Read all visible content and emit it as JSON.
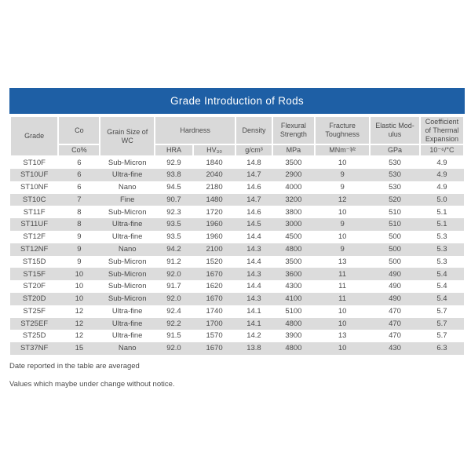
{
  "title": "Grade Introduction of Rods",
  "colors": {
    "title_bar": "#1E5FA5",
    "header_bg": "#D9D9D9",
    "stripe_bg": "#DCDCDC",
    "text": "#4A4A4A",
    "title_text": "#FFFFFF"
  },
  "table": {
    "header": {
      "grade": "Grade",
      "co": "Co",
      "co_unit": "Co%",
      "grain": "Grain Size of WC",
      "hardness": "Hardness",
      "hra": "HRA",
      "hv": "HV₃₀",
      "density": "Density",
      "density_unit": "g/cm³",
      "flexural": "Flexural Strength",
      "flexural_unit": "MPa",
      "fracture": "Fracture Toughness",
      "fracture_unit": "MNm⁻³⁄²",
      "elastic": "Elastic Mod-ulus",
      "elastic_unit": "GPa",
      "cte": "Coefficient of Thermal Expansion",
      "cte_unit": "10⁻⁶/°C"
    },
    "column_keys": [
      "grade",
      "co-percent",
      "grain-size",
      "hra",
      "hv30",
      "density",
      "flexural-strength",
      "fracture-toughness",
      "elastic-modulus",
      "thermal-expansion"
    ],
    "rows": [
      [
        "ST10F",
        "6",
        "Sub-Micron",
        "92.9",
        "1840",
        "14.8",
        "3500",
        "10",
        "530",
        "4.9"
      ],
      [
        "ST10UF",
        "6",
        "Ultra-fine",
        "93.8",
        "2040",
        "14.7",
        "2900",
        "9",
        "530",
        "4.9"
      ],
      [
        "ST10NF",
        "6",
        "Nano",
        "94.5",
        "2180",
        "14.6",
        "4000",
        "9",
        "530",
        "4.9"
      ],
      [
        "ST10C",
        "7",
        "Fine",
        "90.7",
        "1480",
        "14.7",
        "3200",
        "12",
        "520",
        "5.0"
      ],
      [
        "ST11F",
        "8",
        "Sub-Micron",
        "92.3",
        "1720",
        "14.6",
        "3800",
        "10",
        "510",
        "5.1"
      ],
      [
        "ST11UF",
        "8",
        "Ultra-fine",
        "93.5",
        "1960",
        "14.5",
        "3000",
        "9",
        "510",
        "5.1"
      ],
      [
        "ST12F",
        "9",
        "Ultra-fine",
        "93.5",
        "1960",
        "14.4",
        "4500",
        "10",
        "500",
        "5.3"
      ],
      [
        "ST12NF",
        "9",
        "Nano",
        "94.2",
        "2100",
        "14.3",
        "4800",
        "9",
        "500",
        "5.3"
      ],
      [
        "ST15D",
        "9",
        "Sub-Micron",
        "91.2",
        "1520",
        "14.4",
        "3500",
        "13",
        "500",
        "5.3"
      ],
      [
        "ST15F",
        "10",
        "Sub-Micron",
        "92.0",
        "1670",
        "14.3",
        "3600",
        "11",
        "490",
        "5.4"
      ],
      [
        "ST20F",
        "10",
        "Sub-Micron",
        "91.7",
        "1620",
        "14.4",
        "4300",
        "11",
        "490",
        "5.4"
      ],
      [
        "ST20D",
        "10",
        "Sub-Micron",
        "92.0",
        "1670",
        "14.3",
        "4100",
        "11",
        "490",
        "5.4"
      ],
      [
        "ST25F",
        "12",
        "Ultra-fine",
        "92.4",
        "1740",
        "14.1",
        "5100",
        "10",
        "470",
        "5.7"
      ],
      [
        "ST25EF",
        "12",
        "Ultra-fine",
        "92.2",
        "1700",
        "14.1",
        "4800",
        "10",
        "470",
        "5.7"
      ],
      [
        "ST25D",
        "12",
        "Ultra-fine",
        "91.5",
        "1570",
        "14.2",
        "3900",
        "13",
        "470",
        "5.7"
      ],
      [
        "ST37NF",
        "15",
        "Nano",
        "92.0",
        "1670",
        "13.8",
        "4800",
        "10",
        "430",
        "6.3"
      ]
    ]
  },
  "footnotes": [
    "Date reported in the table are averaged",
    "Values which maybe under change without notice."
  ]
}
